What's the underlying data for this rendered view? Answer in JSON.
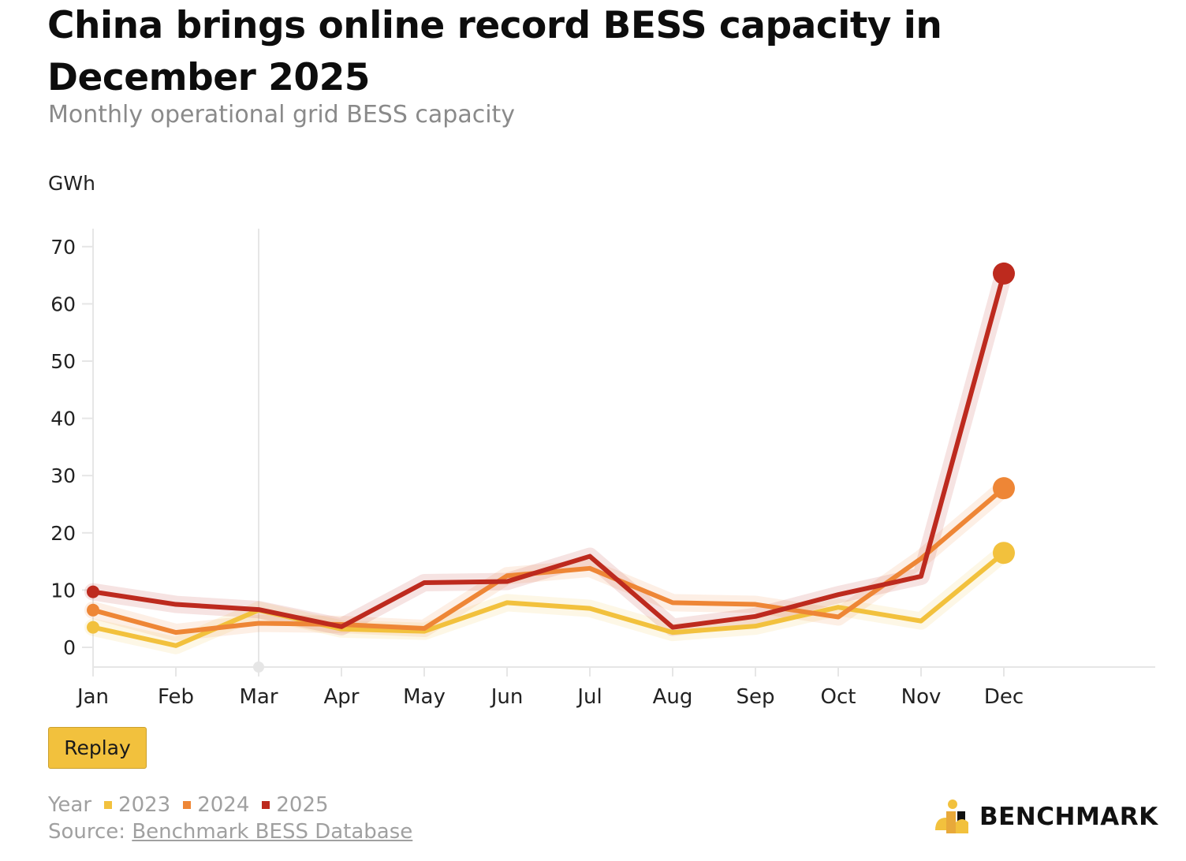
{
  "title": "China brings online record BESS capacity in December 2025",
  "subtitle": "Monthly operational grid BESS capacity",
  "unit_label": "GWh",
  "replay_label": "Replay",
  "legend": {
    "heading": "Year",
    "items": [
      {
        "label": "2023",
        "color": "#f2c13d"
      },
      {
        "label": "2024",
        "color": "#ee8636"
      },
      {
        "label": "2025",
        "color": "#bd2a1e"
      }
    ]
  },
  "source": {
    "prefix": "Source: ",
    "link_text": "Benchmark BESS Database"
  },
  "logo": {
    "text": "BENCHMARK"
  },
  "chart_data": {
    "type": "line",
    "title": "China brings online record BESS capacity in December 2025",
    "subtitle": "Monthly operational grid BESS capacity",
    "xlabel": "",
    "ylabel": "GWh",
    "categories": [
      "Jan",
      "Feb",
      "Mar",
      "Apr",
      "May",
      "Jun",
      "Jul",
      "Aug",
      "Sep",
      "Oct",
      "Nov",
      "Dec"
    ],
    "yticks": [
      0,
      10,
      20,
      30,
      40,
      50,
      60,
      70
    ],
    "ylim": [
      -3.5,
      73
    ],
    "grid": false,
    "legend_position": "bottom-left",
    "series": [
      {
        "name": "2023",
        "color": "#f2c13d",
        "values": [
          3.5,
          0.3,
          6.5,
          3.2,
          2.8,
          7.8,
          6.8,
          2.6,
          3.7,
          7.0,
          4.6,
          16.5
        ]
      },
      {
        "name": "2024",
        "color": "#ee8636",
        "values": [
          6.5,
          2.6,
          4.2,
          4.0,
          3.3,
          12.5,
          13.8,
          7.8,
          7.5,
          5.3,
          15.5,
          27.8
        ]
      },
      {
        "name": "2025",
        "color": "#bd2a1e",
        "values": [
          9.7,
          7.5,
          6.6,
          3.6,
          11.3,
          11.5,
          15.9,
          3.5,
          5.4,
          9.2,
          12.4,
          65.3
        ]
      }
    ]
  }
}
